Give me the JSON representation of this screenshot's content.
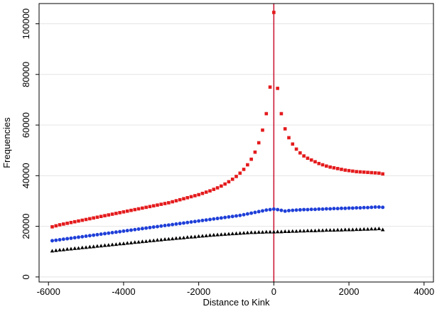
{
  "chart_data": {
    "type": "scatter",
    "title": "",
    "xlabel": "Distance to Kink",
    "ylabel": "Frequencies",
    "xlim": [
      -6250,
      4250
    ],
    "ylim": [
      -2000,
      108000
    ],
    "x_ticks": [
      -6000,
      -4000,
      -2000,
      0,
      2000,
      4000
    ],
    "y_ticks": [
      0,
      20000,
      40000,
      60000,
      80000,
      100000
    ],
    "grid": "horizontal",
    "legend": "none",
    "vertical_line": {
      "x": 0,
      "color": "#c8102e"
    },
    "series": [
      {
        "marker": "square",
        "color": "#e41a1c",
        "x": [
          -5900,
          -5800,
          -5700,
          -5600,
          -5500,
          -5400,
          -5300,
          -5200,
          -5100,
          -5000,
          -4900,
          -4800,
          -4700,
          -4600,
          -4500,
          -4400,
          -4300,
          -4200,
          -4100,
          -4000,
          -3900,
          -3800,
          -3700,
          -3600,
          -3500,
          -3400,
          -3300,
          -3200,
          -3100,
          -3000,
          -2900,
          -2800,
          -2700,
          -2600,
          -2500,
          -2400,
          -2300,
          -2200,
          -2100,
          -2000,
          -1900,
          -1800,
          -1700,
          -1600,
          -1500,
          -1400,
          -1300,
          -1200,
          -1100,
          -1000,
          -900,
          -800,
          -700,
          -600,
          -500,
          -400,
          -300,
          -200,
          -100,
          0,
          100,
          200,
          300,
          400,
          500,
          600,
          700,
          800,
          900,
          1000,
          1100,
          1200,
          1300,
          1400,
          1500,
          1600,
          1700,
          1800,
          1900,
          2000,
          2100,
          2200,
          2300,
          2400,
          2500,
          2600,
          2700,
          2800,
          2900
        ],
        "y": [
          19800,
          20200,
          20600,
          20900,
          21200,
          21500,
          21800,
          22100,
          22400,
          22700,
          23000,
          23300,
          23600,
          23900,
          24200,
          24500,
          24800,
          25100,
          25400,
          25700,
          26000,
          26300,
          26600,
          26900,
          27200,
          27500,
          27800,
          28100,
          28400,
          28700,
          29000,
          29300,
          29700,
          30100,
          30500,
          30900,
          31300,
          31700,
          32100,
          32500,
          33000,
          33500,
          34000,
          34600,
          35200,
          35900,
          36700,
          37600,
          38600,
          39700,
          41000,
          42500,
          44300,
          46500,
          49300,
          53000,
          58000,
          64500,
          75000,
          104500,
          74500,
          64500,
          58500,
          55000,
          52500,
          50500,
          49000,
          47800,
          46900,
          46200,
          45500,
          44800,
          44300,
          43800,
          43400,
          43100,
          42800,
          42500,
          42200,
          42000,
          41800,
          41600,
          41500,
          41400,
          41300,
          41200,
          41100,
          41000,
          40700
        ]
      },
      {
        "marker": "circle",
        "color": "#1f3fd8",
        "x": [
          -5900,
          -5800,
          -5700,
          -5600,
          -5500,
          -5400,
          -5300,
          -5200,
          -5100,
          -5000,
          -4900,
          -4800,
          -4700,
          -4600,
          -4500,
          -4400,
          -4300,
          -4200,
          -4100,
          -4000,
          -3900,
          -3800,
          -3700,
          -3600,
          -3500,
          -3400,
          -3300,
          -3200,
          -3100,
          -3000,
          -2900,
          -2800,
          -2700,
          -2600,
          -2500,
          -2400,
          -2300,
          -2200,
          -2100,
          -2000,
          -1900,
          -1800,
          -1700,
          -1600,
          -1500,
          -1400,
          -1300,
          -1200,
          -1100,
          -1000,
          -900,
          -800,
          -700,
          -600,
          -500,
          -400,
          -300,
          -200,
          -100,
          0,
          100,
          200,
          300,
          400,
          500,
          600,
          700,
          800,
          900,
          1000,
          1100,
          1200,
          1300,
          1400,
          1500,
          1600,
          1700,
          1800,
          1900,
          2000,
          2100,
          2200,
          2300,
          2400,
          2500,
          2600,
          2700,
          2800,
          2900
        ],
        "y": [
          14300,
          14500,
          14700,
          14900,
          15100,
          15300,
          15500,
          15700,
          15900,
          16100,
          16300,
          16500,
          16700,
          16900,
          17100,
          17300,
          17500,
          17700,
          17900,
          18100,
          18300,
          18500,
          18700,
          18900,
          19100,
          19300,
          19500,
          19700,
          19900,
          20100,
          20300,
          20500,
          20700,
          20900,
          21100,
          21300,
          21500,
          21700,
          21900,
          22100,
          22300,
          22500,
          22700,
          22900,
          23100,
          23300,
          23500,
          23700,
          23900,
          24100,
          24300,
          24600,
          24900,
          25200,
          25500,
          25800,
          26100,
          26400,
          26600,
          26800,
          26600,
          26300,
          26000,
          26200,
          26300,
          26400,
          26500,
          26600,
          26600,
          26700,
          26700,
          26800,
          26800,
          26900,
          26900,
          27000,
          27000,
          27100,
          27100,
          27200,
          27200,
          27300,
          27300,
          27400,
          27400,
          27500,
          27600,
          27600,
          27500
        ]
      },
      {
        "marker": "triangle",
        "color": "#000000",
        "x": [
          -5900,
          -5800,
          -5700,
          -5600,
          -5500,
          -5400,
          -5300,
          -5200,
          -5100,
          -5000,
          -4900,
          -4800,
          -4700,
          -4600,
          -4500,
          -4400,
          -4300,
          -4200,
          -4100,
          -4000,
          -3900,
          -3800,
          -3700,
          -3600,
          -3500,
          -3400,
          -3300,
          -3200,
          -3100,
          -3000,
          -2900,
          -2800,
          -2700,
          -2600,
          -2500,
          -2400,
          -2300,
          -2200,
          -2100,
          -2000,
          -1900,
          -1800,
          -1700,
          -1600,
          -1500,
          -1400,
          -1300,
          -1200,
          -1100,
          -1000,
          -900,
          -800,
          -700,
          -600,
          -500,
          -400,
          -300,
          -200,
          -100,
          0,
          100,
          200,
          300,
          400,
          500,
          600,
          700,
          800,
          900,
          1000,
          1100,
          1200,
          1300,
          1400,
          1500,
          1600,
          1700,
          1800,
          1900,
          2000,
          2100,
          2200,
          2300,
          2400,
          2500,
          2600,
          2700,
          2800,
          2900
        ],
        "y": [
          10300,
          10500,
          10700,
          10800,
          11000,
          11100,
          11300,
          11400,
          11600,
          11700,
          11900,
          12000,
          12200,
          12300,
          12500,
          12600,
          12800,
          12900,
          13100,
          13200,
          13400,
          13500,
          13700,
          13800,
          14000,
          14100,
          14300,
          14400,
          14600,
          14700,
          14900,
          15000,
          15100,
          15300,
          15400,
          15500,
          15700,
          15800,
          15900,
          16100,
          16200,
          16300,
          16500,
          16600,
          16700,
          16800,
          16900,
          17000,
          17100,
          17200,
          17300,
          17400,
          17500,
          17600,
          17600,
          17700,
          17700,
          17800,
          17800,
          17800,
          17900,
          17900,
          18000,
          18000,
          18100,
          18100,
          18200,
          18200,
          18300,
          18300,
          18300,
          18400,
          18400,
          18500,
          18500,
          18500,
          18600,
          18600,
          18700,
          18700,
          18700,
          18800,
          18800,
          18900,
          18900,
          19000,
          19000,
          19100,
          18700
        ]
      }
    ]
  }
}
